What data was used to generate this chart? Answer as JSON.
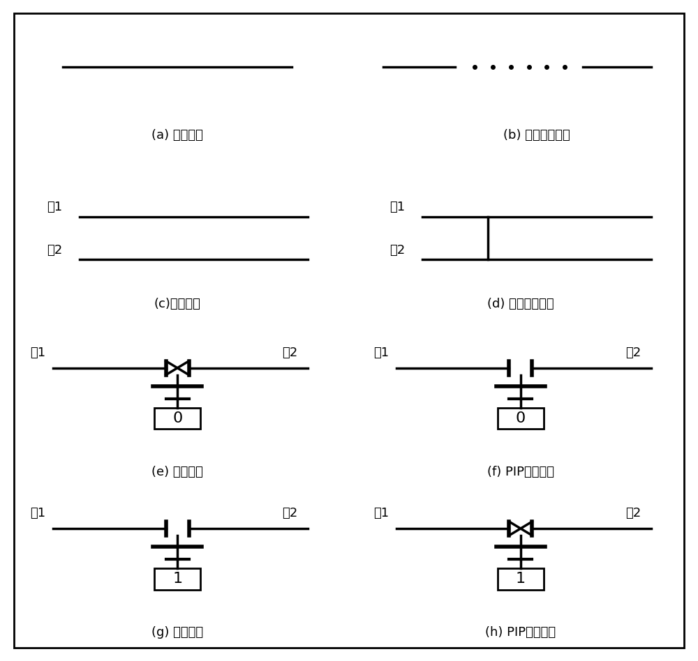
{
  "panels": [
    {
      "id": "a",
      "label": "(a) 正常情况",
      "row": 0,
      "col": 0
    },
    {
      "id": "b",
      "label": "(b) 互连线段开路",
      "row": 0,
      "col": 1
    },
    {
      "id": "c",
      "label": "(c)正常情况",
      "row": 1,
      "col": 0
    },
    {
      "id": "d",
      "label": "(d) 互连线段短路",
      "row": 1,
      "col": 1
    },
    {
      "id": "e",
      "label": "(e) 正常情况",
      "row": 2,
      "col": 0
    },
    {
      "id": "f",
      "label": "(f) PIP常闭故障",
      "row": 2,
      "col": 1
    },
    {
      "id": "g",
      "label": "(g) 正常情况",
      "row": 3,
      "col": 0
    },
    {
      "id": "h",
      "label": "(h) PIP常开故障",
      "row": 3,
      "col": 1
    }
  ],
  "line_color": "#000000",
  "bg_color": "#ffffff",
  "text_color": "#000000",
  "grid_color": "#000000",
  "label_a": "(a) 正常情况",
  "label_b": "(b) 互连线段开路",
  "label_c": "(c)正常情况",
  "label_d": "(d) 互连线段短路",
  "label_e": "(e) 正常情况",
  "label_f": "(f) PIP常闭故障",
  "label_g": "(g) 正常情况",
  "label_h": "(h) PIP常开故障",
  "wire1": "线1",
  "wire2": "线2"
}
